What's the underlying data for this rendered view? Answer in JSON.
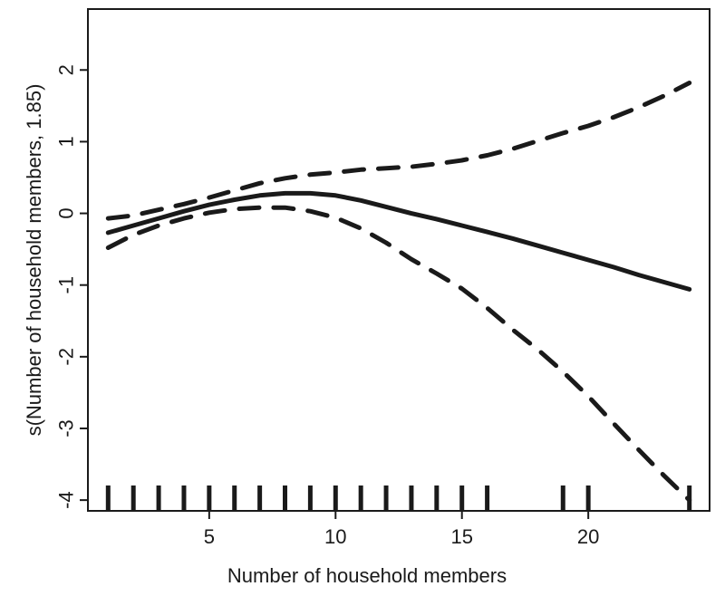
{
  "chart_data": {
    "type": "line",
    "title": "",
    "xlabel": "Number of household members",
    "ylabel": "s(Number of household members, 1.85)",
    "xlim": [
      0.2,
      24.8
    ],
    "ylim": [
      -4.15,
      2.85
    ],
    "x_ticks": [
      5,
      10,
      15,
      20
    ],
    "y_ticks": [
      -4,
      -3,
      -2,
      -1,
      0,
      1,
      2
    ],
    "grid": false,
    "legend": "none",
    "series": [
      {
        "style": "solid",
        "x": [
          1,
          2,
          3,
          4,
          5,
          6,
          7,
          8,
          9,
          10,
          11,
          12,
          13,
          14,
          15,
          16,
          17,
          18,
          19,
          20,
          21,
          22,
          23,
          24
        ],
        "y": [
          -0.27,
          -0.17,
          -0.07,
          0.03,
          0.12,
          0.19,
          0.25,
          0.28,
          0.28,
          0.25,
          0.18,
          0.09,
          0.0,
          -0.08,
          -0.17,
          -0.26,
          -0.35,
          -0.45,
          -0.55,
          -0.65,
          -0.75,
          -0.86,
          -0.96,
          -1.06
        ]
      },
      {
        "style": "dashed",
        "x": [
          1,
          2,
          3,
          4,
          5,
          6,
          7,
          8,
          9,
          10,
          11,
          12,
          13,
          14,
          15,
          16,
          17,
          18,
          19,
          20,
          21,
          22,
          23,
          24
        ],
        "y": [
          -0.07,
          -0.03,
          0.05,
          0.13,
          0.22,
          0.32,
          0.42,
          0.49,
          0.54,
          0.57,
          0.61,
          0.63,
          0.65,
          0.69,
          0.74,
          0.81,
          0.9,
          1.01,
          1.12,
          1.22,
          1.34,
          1.48,
          1.64,
          1.82
        ]
      },
      {
        "style": "dashed",
        "x": [
          1,
          2,
          3,
          4,
          5,
          6,
          7,
          8,
          9,
          10,
          11,
          12,
          13,
          14,
          15,
          16,
          17,
          18,
          19,
          20,
          21,
          22,
          23,
          24
        ],
        "y": [
          -0.48,
          -0.3,
          -0.17,
          -0.07,
          0.01,
          0.06,
          0.08,
          0.08,
          0.03,
          -0.06,
          -0.21,
          -0.41,
          -0.64,
          -0.84,
          -1.05,
          -1.32,
          -1.62,
          -1.9,
          -2.21,
          -2.55,
          -2.93,
          -3.3,
          -3.66,
          -4.0
        ]
      }
    ],
    "rug": [
      1,
      2,
      3,
      4,
      5,
      6,
      7,
      8,
      9,
      10,
      11,
      12,
      13,
      14,
      15,
      16,
      19,
      20,
      24
    ]
  }
}
